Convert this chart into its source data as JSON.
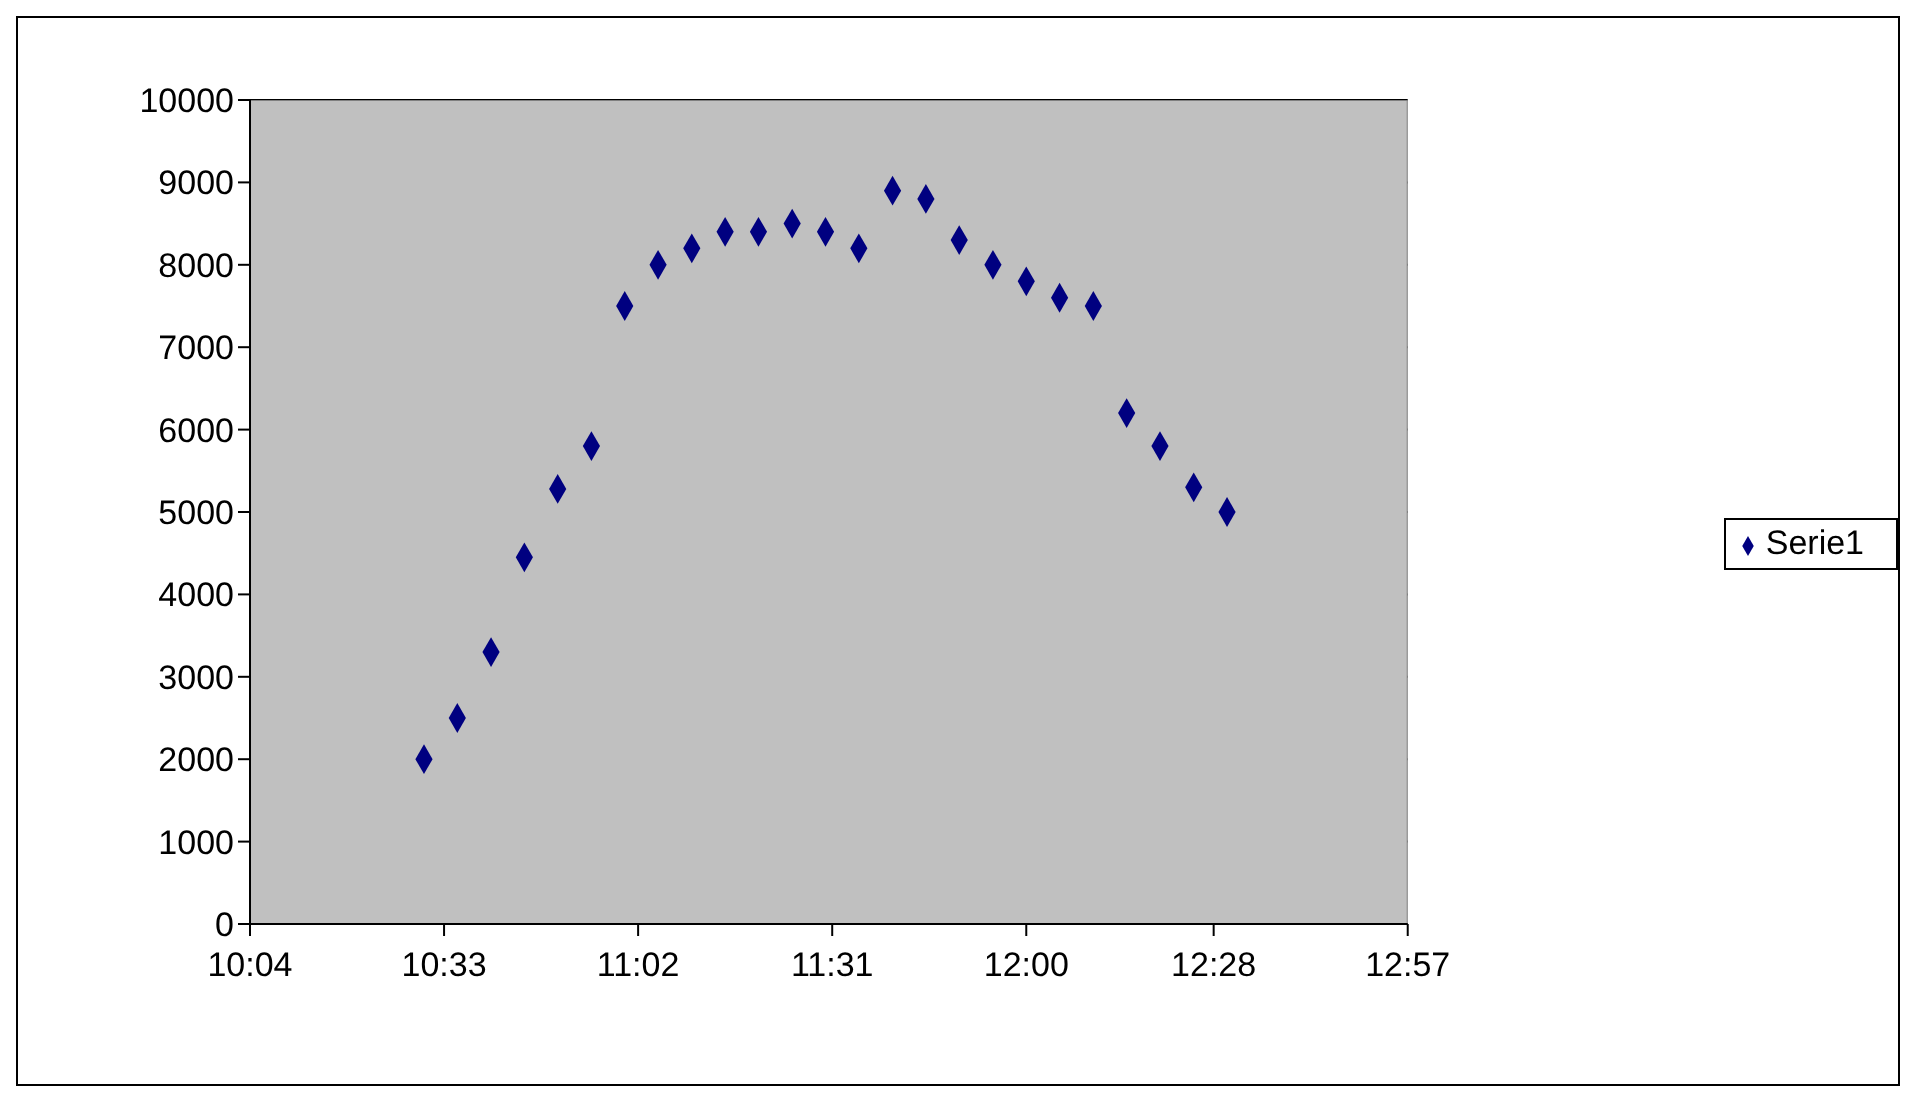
{
  "chart_data": {
    "type": "scatter",
    "x": [
      10.5,
      10.583,
      10.667,
      10.75,
      10.833,
      10.917,
      11.0,
      11.083,
      11.167,
      11.25,
      11.333,
      11.417,
      11.5,
      11.583,
      11.667,
      11.75,
      11.833,
      11.917,
      12.0,
      12.083,
      12.167,
      12.25,
      12.333,
      12.417,
      12.5
    ],
    "series": [
      {
        "name": "Serie1",
        "color": "#000080",
        "values": [
          2000,
          2500,
          3300,
          4450,
          5280,
          5800,
          7500,
          8000,
          8200,
          8400,
          8400,
          8500,
          8400,
          8200,
          8900,
          8800,
          8300,
          8000,
          7800,
          7600,
          7500,
          6200,
          5800,
          5300,
          5000
        ]
      }
    ],
    "xlim": [
      10.0667,
      12.95
    ],
    "xticks": [
      {
        "value": 10.0667,
        "label": "10:04"
      },
      {
        "value": 10.55,
        "label": "10:33"
      },
      {
        "value": 11.0333,
        "label": "11:02"
      },
      {
        "value": 11.5167,
        "label": "11:31"
      },
      {
        "value": 12.0,
        "label": "12:00"
      },
      {
        "value": 12.4667,
        "label": "12:28"
      },
      {
        "value": 12.95,
        "label": "12:57"
      }
    ],
    "ylim": [
      0,
      10000
    ],
    "yticks": [
      0,
      1000,
      2000,
      3000,
      4000,
      5000,
      6000,
      7000,
      8000,
      9000,
      10000
    ],
    "grid": "y",
    "legend": "right",
    "marker": "diamond"
  }
}
